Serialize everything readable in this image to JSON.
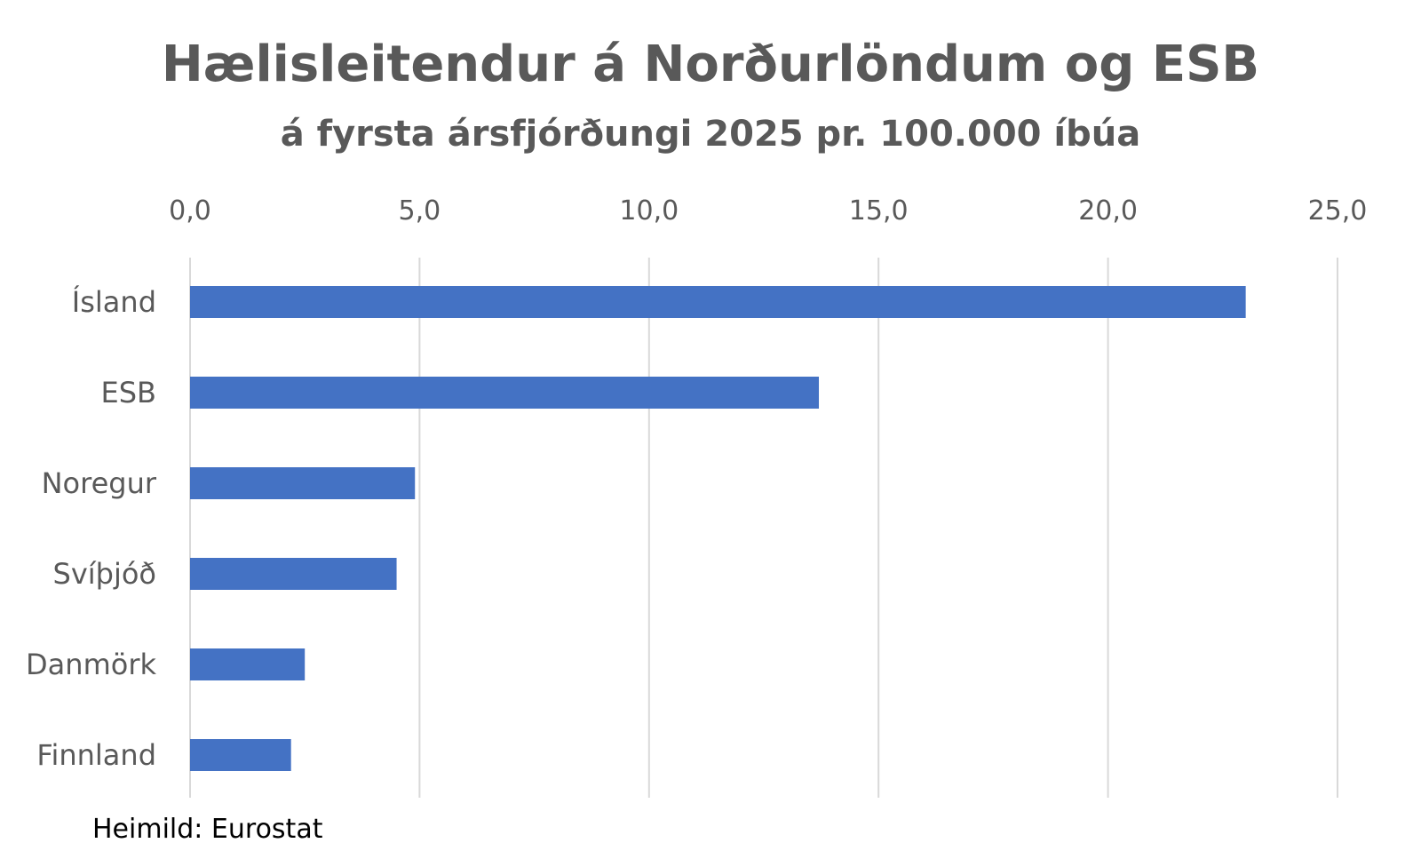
{
  "chart_data": {
    "type": "bar",
    "orientation": "horizontal",
    "title": "Hælisleitendur á Norðurlöndum og ESB",
    "subtitle": "á fyrsta ársfjórðungi 2025 pr. 100.000 íbúa",
    "categories": [
      "Ísland",
      "ESB",
      "Noregur",
      "Svíþjóð",
      "Danmörk",
      "Finnland"
    ],
    "values": [
      23.0,
      13.7,
      4.9,
      4.5,
      2.5,
      2.2
    ],
    "xlim": [
      0,
      25
    ],
    "x_ticks": [
      0,
      5,
      10,
      15,
      20,
      25
    ],
    "x_tick_labels": [
      "0,0",
      "5,0",
      "10,0",
      "15,0",
      "20,0",
      "25,0"
    ],
    "x_axis_position": "top",
    "grid": true,
    "legend": "none",
    "bar_color": "#4472C4",
    "grid_color": "#D9D9D9",
    "source": "Heimild: Eurostat"
  }
}
